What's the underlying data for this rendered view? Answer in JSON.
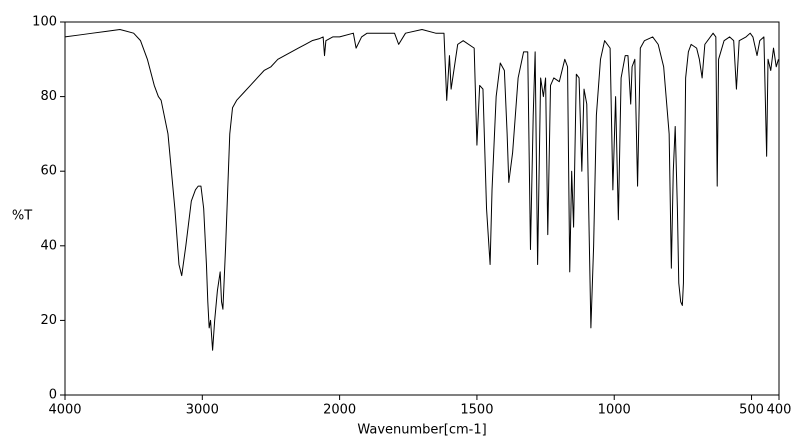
{
  "chart_data": {
    "type": "line",
    "xlabel": "Wavenumber[cm-1]",
    "ylabel": "%T",
    "xlim": [
      4000,
      400
    ],
    "ylim": [
      0,
      100
    ],
    "xticks": [
      4000,
      3000,
      2000,
      1500,
      1000,
      500,
      400
    ],
    "yticks": [
      0,
      20,
      40,
      60,
      80,
      100
    ],
    "x_scale_break": 2000,
    "x": [
      4000,
      3900,
      3800,
      3700,
      3600,
      3500,
      3450,
      3400,
      3350,
      3320,
      3300,
      3250,
      3200,
      3170,
      3150,
      3120,
      3080,
      3050,
      3030,
      3010,
      2990,
      2970,
      2960,
      2950,
      2940,
      2925,
      2910,
      2890,
      2870,
      2860,
      2850,
      2830,
      2800,
      2780,
      2750,
      2700,
      2650,
      2600,
      2550,
      2500,
      2450,
      2400,
      2350,
      2300,
      2250,
      2200,
      2150,
      2120,
      2110,
      2100,
      2050,
      2000,
      1950,
      1940,
      1920,
      1900,
      1850,
      1800,
      1785,
      1760,
      1700,
      1650,
      1620,
      1610,
      1600,
      1594,
      1570,
      1550,
      1510,
      1500,
      1490,
      1478,
      1465,
      1452,
      1445,
      1430,
      1415,
      1400,
      1390,
      1384,
      1370,
      1350,
      1330,
      1315,
      1305,
      1295,
      1288,
      1279,
      1268,
      1258,
      1250,
      1242,
      1232,
      1220,
      1200,
      1180,
      1170,
      1162,
      1155,
      1148,
      1138,
      1128,
      1118,
      1110,
      1100,
      1085,
      1075,
      1065,
      1050,
      1035,
      1015,
      1005,
      995,
      985,
      975,
      960,
      950,
      940,
      935,
      925,
      915,
      905,
      890,
      860,
      840,
      820,
      800,
      792,
      785,
      778,
      770,
      765,
      758,
      752,
      748,
      740,
      730,
      720,
      700,
      690,
      680,
      670,
      640,
      630,
      625,
      620,
      600,
      580,
      565,
      555,
      545,
      520,
      505,
      495,
      480,
      470,
      455,
      445,
      440,
      430,
      420,
      410,
      402
    ],
    "series": [
      {
        "color": "#000000",
        "values": [
          96,
          96.5,
          97,
          97.5,
          98,
          97,
          95,
          90,
          83,
          80,
          79,
          70,
          50,
          35,
          32,
          40,
          52,
          55,
          56,
          56,
          50,
          35,
          25,
          18,
          20,
          12,
          20,
          28,
          33,
          25,
          23,
          40,
          70,
          77,
          79,
          81,
          83,
          85,
          87,
          88,
          90,
          91,
          92,
          93,
          94,
          95,
          95.5,
          96,
          91,
          95,
          96,
          96,
          97,
          93,
          96,
          97,
          97,
          97,
          94,
          97,
          98,
          97,
          97,
          79,
          91,
          82,
          94,
          95,
          93,
          67,
          83,
          82,
          50,
          35,
          55,
          80,
          89,
          87,
          70,
          57,
          65,
          85,
          92,
          92,
          39,
          75,
          92,
          35,
          85,
          80,
          85,
          43,
          83,
          85,
          84,
          90,
          88,
          33,
          60,
          45,
          86,
          85,
          60,
          82,
          78,
          18,
          40,
          75,
          90,
          95,
          93,
          55,
          80,
          47,
          85,
          91,
          91,
          78,
          88,
          90,
          56,
          93,
          95,
          96,
          94,
          88,
          70,
          34,
          60,
          72,
          50,
          30,
          25,
          24,
          30,
          85,
          92,
          94,
          93,
          90,
          85,
          94,
          97,
          96,
          56,
          90,
          95,
          96,
          95,
          82,
          95,
          96,
          97,
          96,
          91,
          95,
          96,
          64,
          90,
          87,
          93,
          88,
          90
        ]
      }
    ]
  }
}
